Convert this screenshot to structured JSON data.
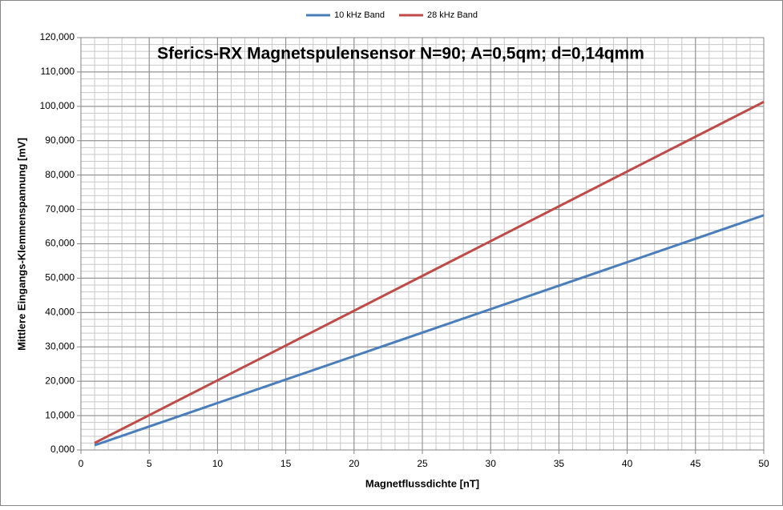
{
  "chart_data": {
    "type": "line",
    "title": "Sferics-RX Magnetspulensensor N=90; A=0,5qm; d=0,14qmm",
    "x_label": "Magnetflussdichte [nT]",
    "y_label": "Mittlere Eingangs-Klemmenspannung [mV]",
    "x": [
      1,
      5,
      10,
      15,
      20,
      25,
      30,
      35,
      40,
      45,
      50
    ],
    "series": [
      {
        "name": "10 kHz Band",
        "color": "#4a7ebb",
        "values": [
          1.37,
          6.83,
          13.66,
          20.49,
          27.32,
          34.15,
          40.98,
          47.81,
          54.64,
          61.47,
          68.3
        ]
      },
      {
        "name": "28 kHz Band",
        "color": "#be4b48",
        "values": [
          2.03,
          10.13,
          20.26,
          30.39,
          40.52,
          50.65,
          60.78,
          70.91,
          81.04,
          91.17,
          101.3
        ]
      }
    ],
    "xlim": [
      0,
      50
    ],
    "xticks": [
      0,
      5,
      10,
      15,
      20,
      25,
      30,
      35,
      40,
      45,
      50
    ],
    "ylim": [
      0,
      120
    ],
    "yticks": [
      {
        "value": 0,
        "label": "0,000"
      },
      {
        "value": 10,
        "label": "10,000"
      },
      {
        "value": 20,
        "label": "20,000"
      },
      {
        "value": 30,
        "label": "30,000"
      },
      {
        "value": 40,
        "label": "40,000"
      },
      {
        "value": 50,
        "label": "50,000"
      },
      {
        "value": 60,
        "label": "60,000"
      },
      {
        "value": 70,
        "label": "70,000"
      },
      {
        "value": 80,
        "label": "80,000"
      },
      {
        "value": 90,
        "label": "90,000"
      },
      {
        "value": 100,
        "label": "100,000"
      },
      {
        "value": 110,
        "label": "110,000"
      },
      {
        "value": 120,
        "label": "120,000"
      }
    ],
    "grid": true,
    "legend": "top"
  }
}
